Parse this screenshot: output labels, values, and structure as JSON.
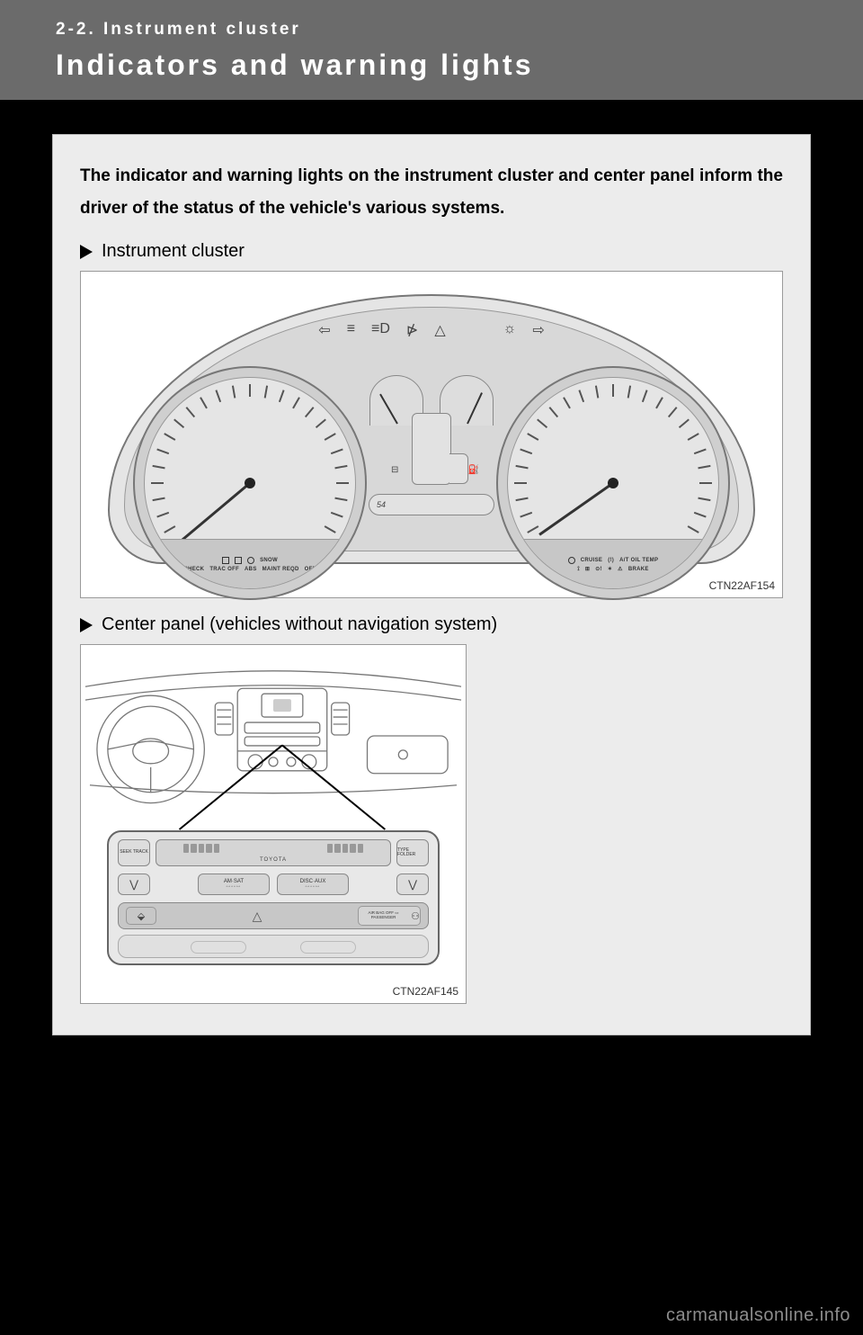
{
  "header": {
    "section": "2-2. Instrument cluster",
    "title": "Indicators and warning lights"
  },
  "intro": "The indicator and warning lights on the instrument cluster and center panel inform the driver of the status of the vehicle's various systems.",
  "sub1": "Instrument cluster",
  "sub2": "Center panel (vehicles without navigation system)",
  "fig1": {
    "caption": "CTN22AF154",
    "top_icons": [
      "⇦",
      "≡",
      "≡D",
      "⋫",
      "△",
      "",
      "☼",
      "⇨"
    ],
    "left_gauge_row1": [
      "◢",
      "▣",
      "⊕",
      "SNOW"
    ],
    "left_gauge_row2": [
      "CHECK",
      "TRAC OFF",
      "ABS",
      "MAINT REQD",
      "OFF"
    ],
    "right_gauge_row1": [
      "⊙",
      "CRUISE",
      "(!)",
      "A/T OIL TEMP"
    ],
    "right_gauge_row2": [
      "⟟",
      "⊞",
      "⊙!",
      "✶",
      "⚠",
      "BRAKE"
    ],
    "trip": "54",
    "lock_icon": "⊟",
    "fuel_icon": "⛽"
  },
  "fig2": {
    "caption": "CTN22AF145",
    "seek": "SEEK TRACK",
    "type": "TYPE FOLDER",
    "brand": "TOYOTA",
    "mode1": "AM·SAT",
    "mode2": "DISC·AUX",
    "airbag": "AIR BAG OFF ▭ PASSENGER"
  },
  "watermark": "carmanualsonline.info",
  "colors": {
    "page_bg": "#000000",
    "band_bg": "#6b6b6b",
    "panel_bg": "#ececec",
    "figure_bg": "#ffffff",
    "line": "#777777"
  }
}
